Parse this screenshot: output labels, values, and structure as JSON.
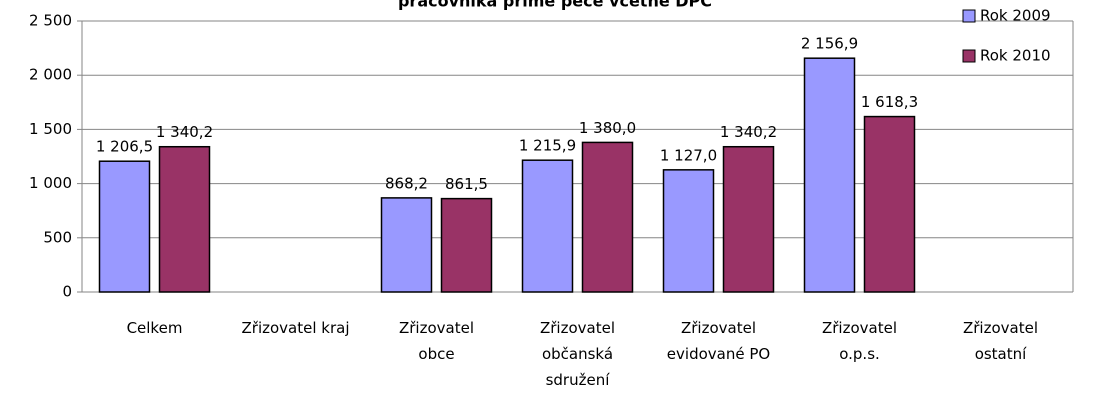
{
  "chart_data": {
    "type": "bar",
    "title": "pracovníka přímé péče včetně DPČ",
    "categories": [
      "Celkem",
      "Zřizovatel kraj",
      "Zřizovatel\nobce",
      "Zřizovatel\nobčanská\nsdružení",
      "Zřizovatel\nevidované PO",
      "Zřizovatel\no.p.s.",
      "Zřizovatel\nostatní"
    ],
    "series": [
      {
        "name": "Rok 2009",
        "color": "#9999ff",
        "values": [
          1206.5,
          null,
          868.2,
          1215.9,
          1127.0,
          2156.9,
          null
        ],
        "value_labels": [
          "1 206,5",
          null,
          "868,2",
          "1 215,9",
          "1 127,0",
          "2 156,9",
          null
        ]
      },
      {
        "name": "Rok 2010",
        "color": "#993366",
        "values": [
          1340.2,
          null,
          861.5,
          1380.0,
          1340.2,
          1618.3,
          null
        ],
        "value_labels": [
          "1 340,2",
          null,
          "861,5",
          "1 380,0",
          "1 340,2",
          "1 618,3",
          null
        ]
      }
    ],
    "ylim": [
      0,
      2500
    ],
    "yticks": [
      0,
      500,
      {
        "value": 1000,
        "label": "1 000"
      },
      {
        "value": 1500,
        "label": "1 500"
      },
      {
        "value": 2000,
        "label": "2 000"
      },
      {
        "value": 2500,
        "label": "2 500"
      }
    ],
    "grid": true,
    "legend": "top-right"
  }
}
